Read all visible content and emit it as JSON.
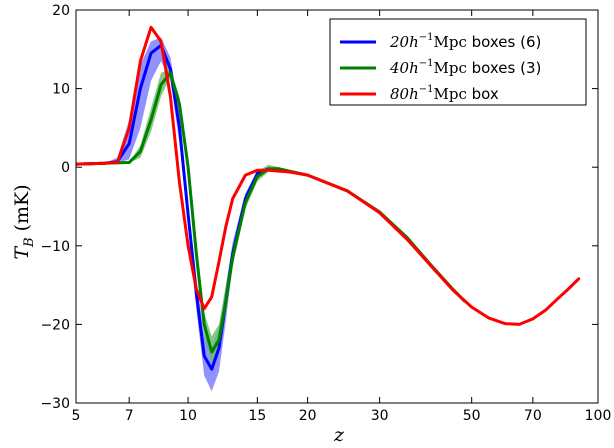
{
  "chart_data": {
    "type": "line",
    "xlabel": "z",
    "ylabel_math": "T",
    "ylabel_sub": "B",
    "ylabel_unit": " (mK)",
    "x_scale": "log(1+z)",
    "xlim": [
      5,
      100
    ],
    "ylim": [
      -30,
      20
    ],
    "x_ticks": [
      5,
      7,
      10,
      15,
      20,
      30,
      50,
      70,
      100
    ],
    "y_ticks": [
      20,
      10,
      0,
      -10,
      -20,
      -30
    ],
    "legend_position": "top-right",
    "legend": [
      {
        "math": "20h",
        "exp": "−1",
        "unit": "Mpc",
        "text": " boxes (6)",
        "color": "#0000ff"
      },
      {
        "math": "40h",
        "exp": "−1",
        "unit": "Mpc",
        "text": " boxes (3)",
        "color": "#008000"
      },
      {
        "math": "80h",
        "exp": "−1",
        "unit": "Mpc",
        "text": " box",
        "color": "#ff0000"
      }
    ],
    "series": [
      {
        "color": "#0000ff",
        "band_color": "#7777ff",
        "x": [
          5,
          6,
          6.5,
          7,
          7.5,
          8,
          8.5,
          9,
          9.5,
          10,
          10.5,
          11,
          11.5,
          12,
          12.5,
          13,
          14,
          15,
          16,
          17,
          18
        ],
        "y": [
          0.4,
          0.5,
          0.7,
          3,
          10,
          14.5,
          15.5,
          12.5,
          5,
          -6,
          -16,
          -24,
          -25.7,
          -23,
          -17,
          -11,
          -4,
          -0.8,
          -0.2,
          -0.4,
          -0.6
        ],
        "band_low": [
          0.4,
          0.5,
          0.5,
          1,
          5,
          11,
          13.5,
          11,
          3,
          -7.5,
          -18,
          -26.5,
          -28.5,
          -26,
          -19.5,
          -12.5,
          -4.8,
          -1.2,
          -0.4,
          -0.4,
          -0.6
        ],
        "band_high": [
          0.4,
          0.5,
          1.2,
          6,
          13,
          16,
          16.5,
          14,
          7,
          -4.5,
          -14,
          -21.5,
          -23,
          -20.5,
          -15,
          -9.5,
          -3.3,
          -0.5,
          -0.1,
          -0.4,
          -0.6
        ]
      },
      {
        "color": "#008000",
        "band_color": "#66bb66",
        "x": [
          5,
          6,
          7,
          7.5,
          8,
          8.5,
          9,
          9.5,
          10,
          10.5,
          11,
          11.5,
          12,
          12.5,
          13,
          14,
          15,
          16,
          17,
          18,
          20,
          25,
          30,
          35,
          40,
          45,
          48
        ],
        "y": [
          0.4,
          0.5,
          0.6,
          2,
          6,
          10.5,
          12,
          8,
          0,
          -11,
          -20,
          -23.5,
          -22,
          -17,
          -11.5,
          -4.5,
          -1.2,
          -0.2,
          -0.2,
          -0.5,
          -1,
          -3,
          -5.7,
          -9,
          -12.5,
          -15.5,
          -17
        ],
        "band_low": [
          0.4,
          0.5,
          0.6,
          1.2,
          4.5,
          9,
          11.5,
          7,
          -1.5,
          -12.5,
          -21.5,
          -25,
          -23.5,
          -18.5,
          -12.5,
          -5.3,
          -1.8,
          -0.6,
          -0.3,
          -0.5,
          -1,
          -3.1,
          -5.9,
          -9.3,
          -12.8,
          -15.8,
          -17.3
        ],
        "band_high": [
          0.4,
          0.5,
          0.6,
          2.8,
          7.5,
          12,
          12.5,
          9,
          1.5,
          -9,
          -18.5,
          -21.5,
          -20,
          -15,
          -10,
          -3.5,
          -0.5,
          0.3,
          0,
          -0.4,
          -0.9,
          -2.9,
          -5.5,
          -8.7,
          -12.2,
          -15.2,
          -16.7
        ]
      },
      {
        "color": "#ff0000",
        "x": [
          5,
          6,
          6.5,
          7,
          7.5,
          8,
          8.5,
          9,
          9.5,
          10,
          10.5,
          11,
          11.5,
          12,
          12.5,
          13,
          14,
          15,
          16,
          17,
          18,
          20,
          25,
          30,
          35,
          40,
          45,
          50,
          55,
          60,
          65,
          70,
          75,
          80,
          85,
          90
        ],
        "y": [
          0.4,
          0.5,
          0.6,
          5,
          13.5,
          17.8,
          16,
          9,
          -2,
          -10,
          -15.5,
          -18,
          -16.5,
          -12,
          -7.5,
          -4,
          -1,
          -0.4,
          -0.4,
          -0.5,
          -0.6,
          -1,
          -3,
          -5.8,
          -9.2,
          -12.6,
          -15.6,
          -17.8,
          -19.2,
          -19.9,
          -20,
          -19.3,
          -18.2,
          -16.8,
          -15.5,
          -14.2
        ]
      }
    ]
  }
}
